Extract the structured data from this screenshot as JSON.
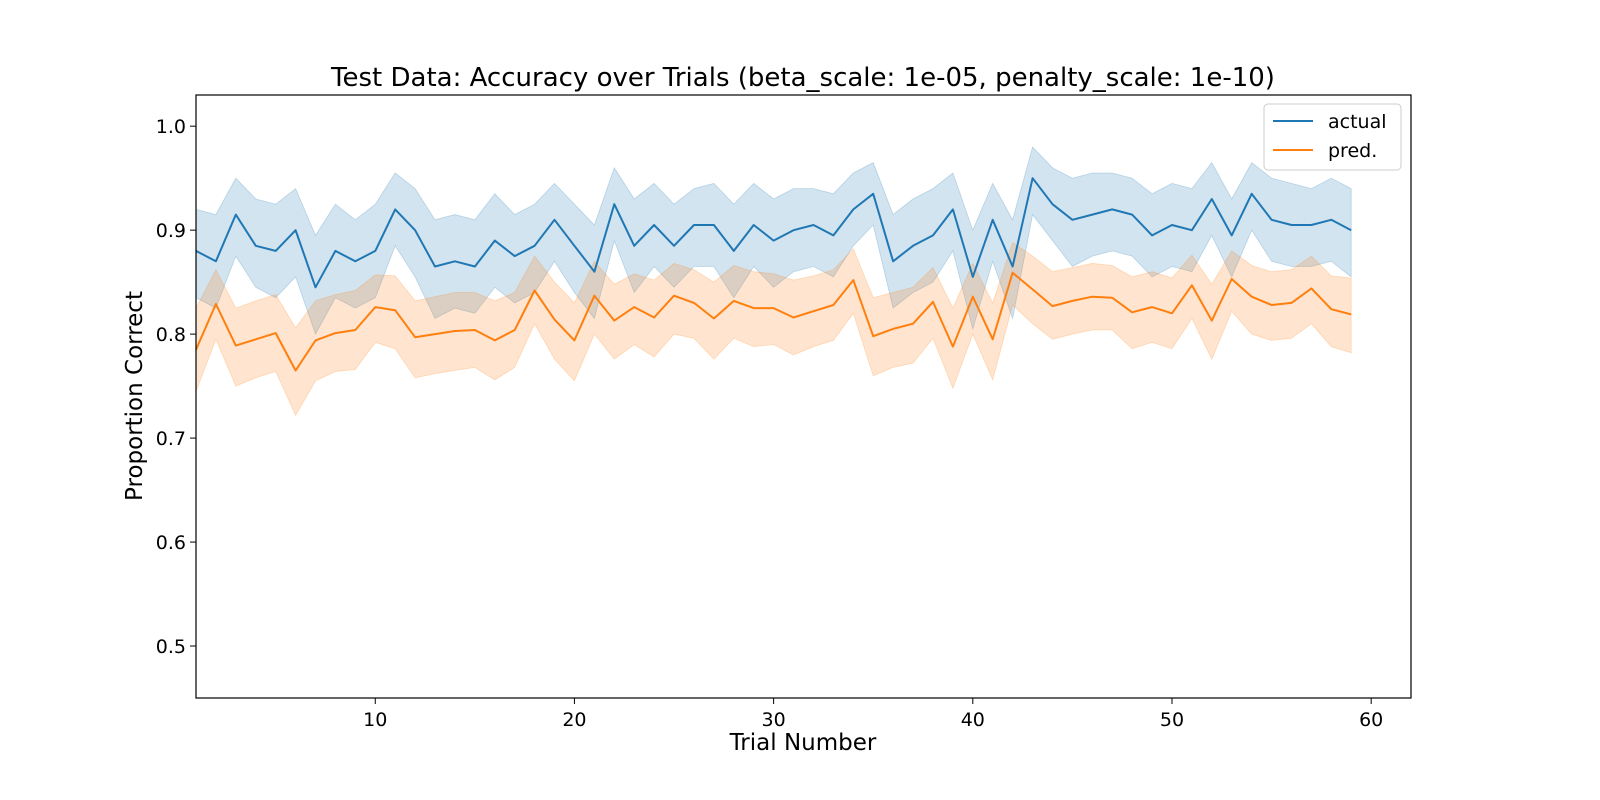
{
  "chart_data": {
    "type": "line",
    "title": "Test Data: Accuracy over Trials (beta_scale: 1e-05, penalty_scale: 1e-10)",
    "xlabel": "Trial Number",
    "ylabel": "Proportion Correct",
    "xlim": [
      1,
      62
    ],
    "ylim": [
      0.45,
      1.03
    ],
    "xticks": [
      10,
      20,
      30,
      40,
      50,
      60
    ],
    "yticks": [
      0.5,
      0.6,
      0.7,
      0.8,
      0.9,
      1.0
    ],
    "xtick_labels": [
      "10",
      "20",
      "30",
      "40",
      "50",
      "60"
    ],
    "ytick_labels": [
      "0.5",
      "0.6",
      "0.7",
      "0.8",
      "0.9",
      "1.0"
    ],
    "grid": false,
    "legend_position": "top-right",
    "x": [
      1,
      2,
      3,
      4,
      5,
      6,
      7,
      8,
      9,
      10,
      11,
      12,
      13,
      14,
      15,
      16,
      17,
      18,
      19,
      20,
      21,
      22,
      23,
      24,
      25,
      26,
      27,
      28,
      29,
      30,
      31,
      32,
      33,
      34,
      35,
      36,
      37,
      38,
      39,
      40,
      41,
      42,
      43,
      44,
      45,
      46,
      47,
      48,
      49,
      50,
      51,
      52,
      53,
      54,
      55,
      56,
      57,
      58,
      59
    ],
    "series": [
      {
        "name": "actual",
        "color": "#1f77b4",
        "values": [
          0.88,
          0.87,
          0.915,
          0.885,
          0.88,
          0.9,
          0.845,
          0.88,
          0.87,
          0.88,
          0.92,
          0.9,
          0.865,
          0.87,
          0.865,
          0.89,
          0.875,
          0.885,
          0.91,
          0.885,
          0.86,
          0.925,
          0.885,
          0.905,
          0.885,
          0.905,
          0.905,
          0.88,
          0.905,
          0.89,
          0.9,
          0.905,
          0.895,
          0.92,
          0.935,
          0.87,
          0.885,
          0.895,
          0.92,
          0.855,
          0.91,
          0.865,
          0.95,
          0.925,
          0.91,
          0.915,
          0.92,
          0.915,
          0.895,
          0.905,
          0.9,
          0.93,
          0.895,
          0.935,
          0.91,
          0.905,
          0.905,
          0.91,
          0.9
        ],
        "upper": [
          0.92,
          0.915,
          0.95,
          0.93,
          0.925,
          0.94,
          0.895,
          0.925,
          0.91,
          0.925,
          0.955,
          0.94,
          0.91,
          0.915,
          0.91,
          0.935,
          0.915,
          0.925,
          0.945,
          0.925,
          0.905,
          0.96,
          0.93,
          0.945,
          0.925,
          0.94,
          0.945,
          0.925,
          0.945,
          0.93,
          0.94,
          0.94,
          0.935,
          0.955,
          0.965,
          0.915,
          0.93,
          0.94,
          0.955,
          0.9,
          0.945,
          0.91,
          0.98,
          0.96,
          0.95,
          0.955,
          0.955,
          0.95,
          0.935,
          0.945,
          0.94,
          0.965,
          0.93,
          0.965,
          0.95,
          0.945,
          0.94,
          0.95,
          0.94
        ],
        "lower": [
          0.835,
          0.825,
          0.875,
          0.845,
          0.835,
          0.855,
          0.8,
          0.835,
          0.825,
          0.835,
          0.885,
          0.855,
          0.815,
          0.825,
          0.82,
          0.845,
          0.83,
          0.84,
          0.87,
          0.84,
          0.815,
          0.89,
          0.84,
          0.865,
          0.845,
          0.865,
          0.865,
          0.835,
          0.865,
          0.845,
          0.86,
          0.865,
          0.855,
          0.885,
          0.905,
          0.825,
          0.84,
          0.85,
          0.88,
          0.805,
          0.87,
          0.815,
          0.915,
          0.89,
          0.865,
          0.875,
          0.88,
          0.875,
          0.855,
          0.865,
          0.86,
          0.895,
          0.855,
          0.9,
          0.87,
          0.865,
          0.865,
          0.87,
          0.855
        ]
      },
      {
        "name": "pred.",
        "color": "#ff7f0e",
        "values": [
          0.785,
          0.829,
          0.789,
          0.795,
          0.801,
          0.765,
          0.794,
          0.801,
          0.804,
          0.826,
          0.823,
          0.797,
          0.8,
          0.803,
          0.804,
          0.794,
          0.804,
          0.842,
          0.814,
          0.794,
          0.837,
          0.813,
          0.826,
          0.816,
          0.837,
          0.83,
          0.815,
          0.832,
          0.825,
          0.825,
          0.816,
          0.822,
          0.828,
          0.852,
          0.798,
          0.805,
          0.81,
          0.831,
          0.788,
          0.836,
          0.795,
          0.859,
          0.843,
          0.827,
          0.832,
          0.836,
          0.835,
          0.821,
          0.826,
          0.82,
          0.847,
          0.813,
          0.853,
          0.836,
          0.828,
          0.83,
          0.844,
          0.824,
          0.819
        ],
        "upper": [
          0.825,
          0.862,
          0.825,
          0.832,
          0.838,
          0.806,
          0.832,
          0.838,
          0.842,
          0.857,
          0.856,
          0.832,
          0.836,
          0.84,
          0.84,
          0.832,
          0.84,
          0.875,
          0.85,
          0.83,
          0.87,
          0.848,
          0.858,
          0.852,
          0.868,
          0.862,
          0.85,
          0.866,
          0.86,
          0.858,
          0.852,
          0.856,
          0.862,
          0.882,
          0.835,
          0.84,
          0.845,
          0.864,
          0.825,
          0.868,
          0.83,
          0.888,
          0.875,
          0.86,
          0.864,
          0.868,
          0.866,
          0.855,
          0.86,
          0.854,
          0.876,
          0.848,
          0.88,
          0.866,
          0.86,
          0.862,
          0.875,
          0.856,
          0.854
        ],
        "lower": [
          0.745,
          0.795,
          0.75,
          0.758,
          0.764,
          0.722,
          0.755,
          0.764,
          0.766,
          0.792,
          0.786,
          0.758,
          0.762,
          0.765,
          0.768,
          0.756,
          0.768,
          0.81,
          0.776,
          0.755,
          0.8,
          0.776,
          0.79,
          0.778,
          0.8,
          0.796,
          0.776,
          0.796,
          0.788,
          0.79,
          0.78,
          0.788,
          0.794,
          0.82,
          0.76,
          0.768,
          0.772,
          0.796,
          0.748,
          0.8,
          0.756,
          0.828,
          0.81,
          0.795,
          0.8,
          0.804,
          0.804,
          0.786,
          0.792,
          0.786,
          0.815,
          0.776,
          0.822,
          0.8,
          0.794,
          0.796,
          0.81,
          0.788,
          0.782
        ]
      }
    ]
  }
}
